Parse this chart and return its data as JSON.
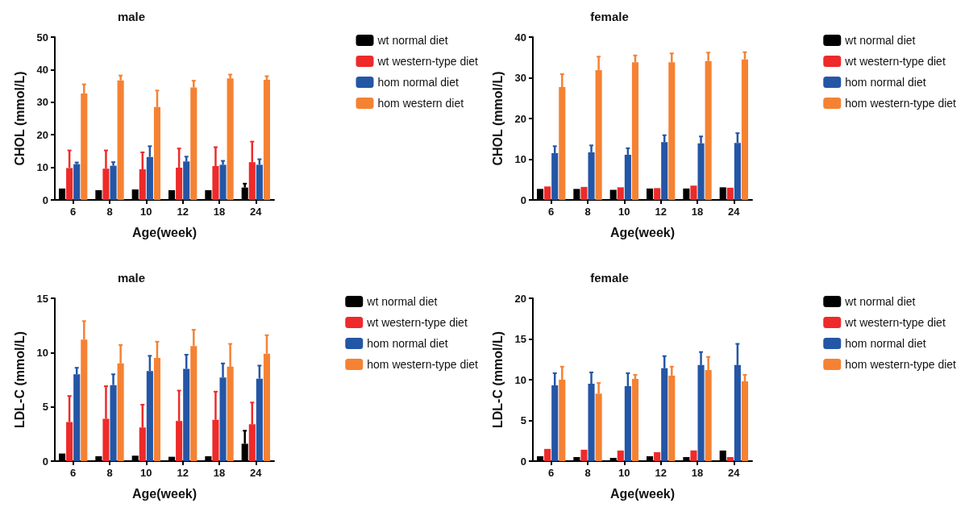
{
  "chart_data": [
    {
      "type": "bar",
      "title": "male",
      "xlabel": "Age(week)",
      "ylabel": "CHOL (mmol/L)",
      "categories": [
        "6",
        "8",
        "10",
        "12",
        "18",
        "24"
      ],
      "ylim": [
        0,
        50
      ],
      "yticks": [
        0,
        10,
        20,
        30,
        40,
        50
      ],
      "grid": false,
      "legend": "right",
      "series": [
        {
          "name": "wt normal diet",
          "color": "#000000",
          "values": [
            3.5,
            3.0,
            3.2,
            3.0,
            3.0,
            3.8
          ],
          "errors": [
            null,
            null,
            null,
            null,
            null,
            [
              3.8,
              5.0
            ]
          ]
        },
        {
          "name": "wt western-type diet",
          "color": "#ee2a2a",
          "values": [
            9.8,
            9.6,
            9.4,
            9.9,
            10.4,
            11.6
          ],
          "errors": [
            [
              9.8,
              15.2
            ],
            [
              9.6,
              15.2
            ],
            [
              9.4,
              14.6
            ],
            [
              9.9,
              15.8
            ],
            [
              10.4,
              16.2
            ],
            [
              11.6,
              17.9
            ]
          ]
        },
        {
          "name": "hom normal diet",
          "color": "#2456a6",
          "values": [
            11.0,
            10.5,
            13.2,
            11.8,
            10.8,
            10.8
          ],
          "errors": [
            [
              11.0,
              11.5
            ],
            [
              10.5,
              11.6
            ],
            [
              13.2,
              16.5
            ],
            [
              11.8,
              13.3
            ],
            [
              10.8,
              12.0
            ],
            [
              10.8,
              12.5
            ]
          ]
        },
        {
          "name": "hom western diet",
          "color": "#f58233",
          "values": [
            32.7,
            36.7,
            28.5,
            34.5,
            37.3,
            36.9
          ],
          "errors": [
            [
              32.7,
              35.5
            ],
            [
              36.7,
              38.2
            ],
            [
              28.5,
              33.6
            ],
            [
              34.5,
              36.6
            ],
            [
              37.3,
              38.5
            ],
            [
              36.9,
              38.0
            ]
          ]
        }
      ]
    },
    {
      "type": "bar",
      "title": "female",
      "xlabel": "Age(week)",
      "ylabel": "CHOL (mmol/L)",
      "categories": [
        "6",
        "8",
        "10",
        "12",
        "18",
        "24"
      ],
      "ylim": [
        0,
        40
      ],
      "yticks": [
        0,
        10,
        20,
        30,
        40
      ],
      "grid": false,
      "legend": "right",
      "series": [
        {
          "name": "wt normal diet",
          "color": "#000000",
          "values": [
            2.7,
            2.7,
            2.5,
            2.8,
            2.8,
            3.1
          ]
        },
        {
          "name": "wt western-type diet",
          "color": "#ee2a2a",
          "values": [
            3.3,
            3.2,
            3.1,
            2.9,
            3.5,
            3.0
          ]
        },
        {
          "name": "hom normal diet",
          "color": "#2456a6",
          "values": [
            11.5,
            11.7,
            11.1,
            14.2,
            13.9,
            14.0
          ],
          "errors": [
            [
              11.5,
              13.2
            ],
            [
              11.7,
              13.4
            ],
            [
              11.1,
              12.7
            ],
            [
              14.2,
              15.9
            ],
            [
              13.9,
              15.6
            ],
            [
              14.0,
              16.4
            ]
          ]
        },
        {
          "name": "hom western-type diet",
          "color": "#f58233",
          "values": [
            27.7,
            31.9,
            33.8,
            33.8,
            34.1,
            34.5
          ],
          "errors": [
            [
              27.7,
              30.9
            ],
            [
              31.9,
              35.2
            ],
            [
              33.8,
              35.5
            ],
            [
              33.8,
              36.0
            ],
            [
              34.1,
              36.2
            ],
            [
              34.5,
              36.3
            ]
          ]
        }
      ]
    },
    {
      "type": "bar",
      "title": "male",
      "xlabel": "Age(week)",
      "ylabel": "LDL-C (mmol/L)",
      "categories": [
        "6",
        "8",
        "10",
        "12",
        "18",
        "24"
      ],
      "ylim": [
        0,
        15
      ],
      "yticks": [
        0,
        5,
        10,
        15
      ],
      "grid": false,
      "legend": "right",
      "series": [
        {
          "name": "wt normal diet",
          "color": "#000000",
          "values": [
            0.7,
            0.45,
            0.5,
            0.4,
            0.45,
            1.6
          ],
          "errors": [
            null,
            null,
            null,
            null,
            null,
            [
              1.6,
              2.8
            ]
          ]
        },
        {
          "name": "wt western-type diet",
          "color": "#ee2a2a",
          "values": [
            3.6,
            3.9,
            3.1,
            3.7,
            3.8,
            3.4
          ],
          "errors": [
            [
              3.6,
              6.0
            ],
            [
              3.9,
              6.9
            ],
            [
              3.1,
              5.2
            ],
            [
              3.7,
              6.5
            ],
            [
              3.8,
              6.4
            ],
            [
              3.4,
              5.4
            ]
          ]
        },
        {
          "name": "hom normal diet",
          "color": "#2456a6",
          "values": [
            8.0,
            7.0,
            8.3,
            8.5,
            7.7,
            7.6
          ],
          "errors": [
            [
              8.0,
              8.6
            ],
            [
              7.0,
              8.0
            ],
            [
              8.3,
              9.7
            ],
            [
              8.5,
              9.8
            ],
            [
              7.7,
              9.0
            ],
            [
              7.6,
              8.8
            ]
          ]
        },
        {
          "name": "hom western-type diet",
          "color": "#f58233",
          "values": [
            11.2,
            9.0,
            9.5,
            10.6,
            8.7,
            9.9
          ],
          "errors": [
            [
              11.2,
              12.9
            ],
            [
              9.0,
              10.7
            ],
            [
              9.5,
              11.0
            ],
            [
              10.6,
              12.1
            ],
            [
              8.7,
              10.8
            ],
            [
              9.9,
              11.6
            ]
          ]
        }
      ]
    },
    {
      "type": "bar",
      "title": "female",
      "xlabel": "Age(week)",
      "ylabel": "LDL-C (mmol/L)",
      "categories": [
        "6",
        "8",
        "10",
        "12",
        "18",
        "24"
      ],
      "ylim": [
        0,
        20
      ],
      "yticks": [
        0,
        5,
        10,
        15,
        20
      ],
      "grid": false,
      "legend": "right",
      "series": [
        {
          "name": "wt normal diet",
          "color": "#000000",
          "values": [
            0.6,
            0.5,
            0.4,
            0.6,
            0.5,
            1.3
          ]
        },
        {
          "name": "wt western-type diet",
          "color": "#ee2a2a",
          "values": [
            1.5,
            1.4,
            1.3,
            1.1,
            1.3,
            0.5
          ]
        },
        {
          "name": "hom normal diet",
          "color": "#2456a6",
          "values": [
            9.3,
            9.5,
            9.2,
            11.4,
            11.8,
            11.8
          ],
          "errors": [
            [
              9.3,
              10.8
            ],
            [
              9.5,
              10.9
            ],
            [
              9.2,
              10.8
            ],
            [
              11.4,
              12.9
            ],
            [
              11.8,
              13.4
            ],
            [
              11.8,
              14.4
            ]
          ]
        },
        {
          "name": "hom western-type diet",
          "color": "#f58233",
          "values": [
            10.0,
            8.3,
            10.1,
            10.5,
            11.2,
            9.8
          ],
          "errors": [
            [
              10.0,
              11.6
            ],
            [
              8.3,
              9.6
            ],
            [
              10.1,
              10.6
            ],
            [
              10.5,
              11.6
            ],
            [
              11.2,
              12.8
            ],
            [
              9.8,
              10.6
            ]
          ]
        }
      ]
    }
  ]
}
